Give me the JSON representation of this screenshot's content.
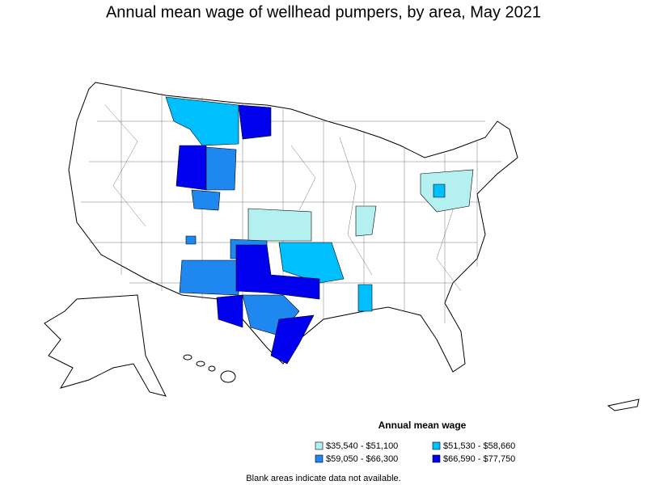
{
  "title": "Annual mean wage of wellhead pumpers, by area, May 2021",
  "legend": {
    "title": "Annual mean wage",
    "items": [
      {
        "label": "$35,540 - $51,100",
        "color": "#b4f0f0"
      },
      {
        "label": "$51,530 - $58,660",
        "color": "#00bfff"
      },
      {
        "label": "$59,050 - $66,300",
        "color": "#1e88f0"
      },
      {
        "label": "$66,590 - $77,750",
        "color": "#0000ee"
      }
    ]
  },
  "note": "Blank areas indicate data not available."
}
